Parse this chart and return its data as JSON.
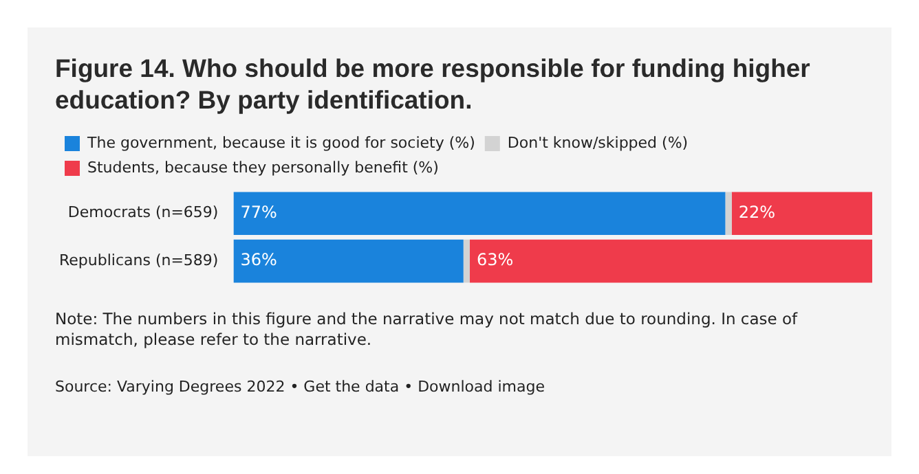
{
  "chart_data": {
    "type": "bar",
    "orientation": "horizontal",
    "stacked": true,
    "title": "Figure 14. Who should be more responsible for funding higher education? By party identification.",
    "categories": [
      "Democrats (n=659)",
      "Republicans (n=589)"
    ],
    "series": [
      {
        "name": "The government, because it is good for society (%)",
        "color": "#1a83dc",
        "values": [
          77,
          36
        ],
        "value_labels": [
          "77%",
          "36%"
        ]
      },
      {
        "name": "Don't know/skipped (%)",
        "color": "#d3d3d3",
        "values": [
          1,
          1
        ]
      },
      {
        "name": "Students, because they personally benefit (%)",
        "color": "#ef3b4b",
        "values": [
          22,
          63
        ],
        "value_labels": [
          "22%",
          "63%"
        ]
      }
    ],
    "xlim": [
      0,
      100
    ],
    "tick_labels": "y",
    "legend": "top left",
    "annotations": [
      "Note: The numbers in this figure and the narrative may not match due to rounding. In case of mismatch, please refer to the narrative.",
      "Source: Varying Degrees 2022 • Get the data • Download image"
    ]
  }
}
